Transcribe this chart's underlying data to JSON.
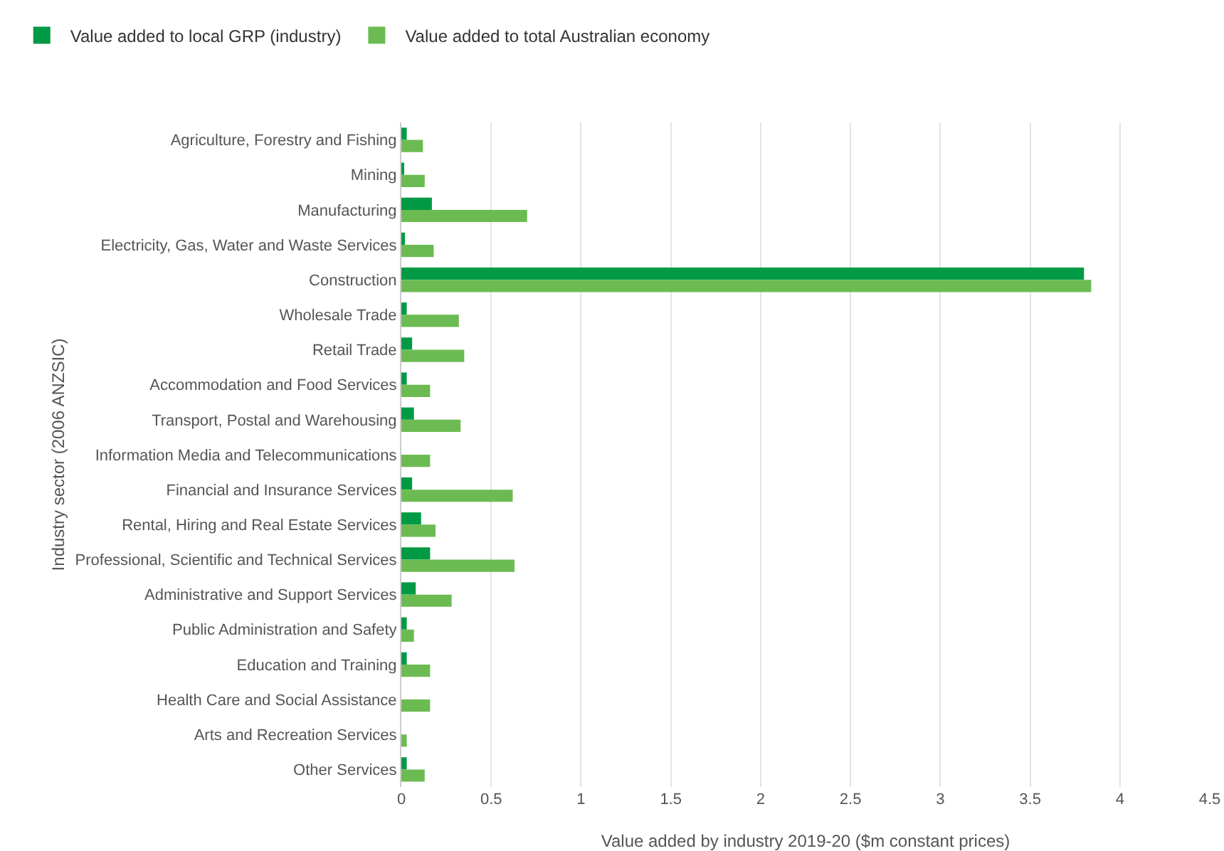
{
  "chart_data": {
    "type": "bar",
    "orientation": "horizontal",
    "xlabel": "Value added by industry 2019-20 ($m constant prices)",
    "ylabel": "Industry sector (2006 ANZSIC)",
    "categories": [
      "Agriculture, Forestry and Fishing",
      "Mining",
      "Manufacturing",
      "Electricity, Gas, Water and Waste Services",
      "Construction",
      "Wholesale Trade",
      "Retail Trade",
      "Accommodation and Food Services",
      "Transport, Postal and Warehousing",
      "Information Media and Telecommunications",
      "Financial and Insurance Services",
      "Rental, Hiring and Real Estate Services",
      "Professional, Scientific and Technical Services",
      "Administrative and Support Services",
      "Public Administration and Safety",
      "Education and Training",
      "Health Care and Social Assistance",
      "Arts and Recreation Services",
      "Other Services"
    ],
    "series": [
      {
        "name": "Value added to local GRP (industry)",
        "color": "#009a44",
        "values": [
          0.03,
          0.01,
          0.17,
          0.02,
          3.8,
          0.03,
          0.06,
          0.03,
          0.07,
          0,
          0.06,
          0.11,
          0.16,
          0.08,
          0.03,
          0.03,
          0,
          0,
          0.03
        ]
      },
      {
        "name": "Value added to total Australian economy",
        "color": "#6cbb52",
        "values": [
          0.12,
          0.13,
          0.7,
          0.18,
          3.84,
          0.32,
          0.35,
          0.16,
          0.33,
          0.16,
          0.62,
          0.19,
          0.63,
          0.28,
          0.07,
          0.16,
          0.16,
          0.03,
          0.13
        ]
      }
    ],
    "xlim": [
      0,
      4.5
    ],
    "xticks": [
      0,
      0.5,
      1,
      1.5,
      2,
      2.5,
      3,
      3.5,
      4,
      4.5
    ],
    "grid": "x",
    "legend": "top left"
  }
}
